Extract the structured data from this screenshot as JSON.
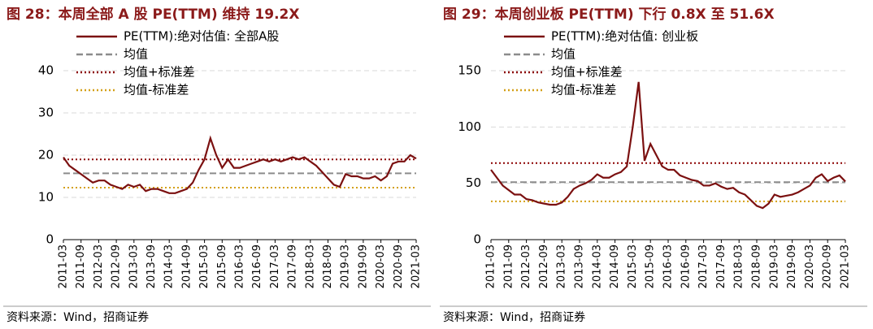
{
  "chart_data": [
    {
      "type": "line",
      "title": "图 28：本周全部 A 股 PE(TTM) 维持 19.2X",
      "source": "资料来源：Wind，招商证券",
      "x": [
        "2011-03",
        "2011-05",
        "2011-07",
        "2011-09",
        "2011-11",
        "2012-01",
        "2012-03",
        "2012-05",
        "2012-07",
        "2012-09",
        "2012-11",
        "2013-01",
        "2013-03",
        "2013-05",
        "2013-07",
        "2013-09",
        "2013-11",
        "2014-01",
        "2014-03",
        "2014-05",
        "2014-07",
        "2014-09",
        "2014-11",
        "2015-01",
        "2015-03",
        "2015-05",
        "2015-07",
        "2015-09",
        "2015-11",
        "2016-01",
        "2016-03",
        "2016-05",
        "2016-07",
        "2016-09",
        "2016-11",
        "2017-01",
        "2017-03",
        "2017-05",
        "2017-07",
        "2017-09",
        "2017-11",
        "2018-01",
        "2018-03",
        "2018-05",
        "2018-07",
        "2018-09",
        "2018-11",
        "2019-01",
        "2019-03",
        "2019-05",
        "2019-07",
        "2019-09",
        "2019-11",
        "2020-01",
        "2020-03",
        "2020-05",
        "2020-07",
        "2020-09",
        "2020-11",
        "2021-01",
        "2021-03"
      ],
      "series": [
        {
          "name": "PE(TTM):绝对估值: 全部A股",
          "color": "#7b1010",
          "values": [
            19.5,
            17.5,
            16.5,
            15.5,
            14.5,
            13.5,
            14,
            14,
            13,
            12.5,
            12,
            13,
            12.5,
            13,
            11.5,
            12,
            12,
            11.5,
            11,
            11,
            11.5,
            12,
            13.5,
            16.5,
            19,
            24,
            20,
            17,
            19,
            17,
            17,
            17.5,
            18,
            18.5,
            19,
            18.5,
            19,
            18.5,
            19,
            19.5,
            19,
            19.5,
            18.5,
            17.5,
            16,
            14.5,
            13,
            12.5,
            15.5,
            15,
            15,
            14.5,
            14.5,
            15,
            14,
            15,
            18,
            18.5,
            18.5,
            20,
            19.2
          ]
        }
      ],
      "reference_lines": [
        {
          "name": "均值",
          "color": "#8c8c8c",
          "style": "dashed",
          "value": 15.7
        },
        {
          "name": "均值+标准差",
          "color": "#8b0000",
          "style": "dotted",
          "value": 19
        },
        {
          "name": "均值-标准差",
          "color": "#d4a017",
          "style": "dotted",
          "value": 12.3
        }
      ],
      "ylim": [
        0,
        40
      ],
      "yticks": [
        0,
        10,
        20,
        30,
        40
      ],
      "grid": true
    },
    {
      "type": "line",
      "title": "图 29：本周创业板 PE(TTM) 下行 0.8X 至 51.6X",
      "source": "资料来源：Wind，招商证券",
      "x": [
        "2011-03",
        "2011-05",
        "2011-07",
        "2011-09",
        "2011-11",
        "2012-01",
        "2012-03",
        "2012-05",
        "2012-07",
        "2012-09",
        "2012-11",
        "2013-01",
        "2013-03",
        "2013-05",
        "2013-07",
        "2013-09",
        "2013-11",
        "2014-01",
        "2014-03",
        "2014-05",
        "2014-07",
        "2014-09",
        "2014-11",
        "2015-01",
        "2015-03",
        "2015-05",
        "2015-07",
        "2015-09",
        "2015-11",
        "2016-01",
        "2016-03",
        "2016-05",
        "2016-07",
        "2016-09",
        "2016-11",
        "2017-01",
        "2017-03",
        "2017-05",
        "2017-07",
        "2017-09",
        "2017-11",
        "2018-01",
        "2018-03",
        "2018-05",
        "2018-07",
        "2018-09",
        "2018-11",
        "2019-01",
        "2019-03",
        "2019-05",
        "2019-07",
        "2019-09",
        "2019-11",
        "2020-01",
        "2020-03",
        "2020-05",
        "2020-07",
        "2020-09",
        "2020-11",
        "2021-01",
        "2021-03"
      ],
      "series": [
        {
          "name": "PE(TTM):绝对估值: 创业板",
          "color": "#7b1010",
          "values": [
            62,
            55,
            48,
            44,
            40,
            40,
            36,
            35,
            33,
            32,
            31,
            31,
            33,
            38,
            45,
            48,
            50,
            53,
            58,
            55,
            55,
            58,
            60,
            65,
            100,
            140,
            70,
            85,
            75,
            65,
            62,
            62,
            57,
            55,
            53,
            52,
            48,
            48,
            50,
            47,
            45,
            46,
            42,
            40,
            35,
            30,
            28,
            32,
            40,
            38,
            39,
            40,
            42,
            45,
            48,
            55,
            58,
            52,
            55,
            57,
            51.6
          ]
        }
      ],
      "reference_lines": [
        {
          "name": "均值",
          "color": "#8c8c8c",
          "style": "dashed",
          "value": 51
        },
        {
          "name": "均值+标准差",
          "color": "#8b0000",
          "style": "dotted",
          "value": 68
        },
        {
          "name": "均值-标准差",
          "color": "#d4a017",
          "style": "dotted",
          "value": 34
        }
      ],
      "ylim": [
        0,
        150
      ],
      "yticks": [
        0,
        50,
        100,
        150
      ],
      "grid": true
    }
  ]
}
